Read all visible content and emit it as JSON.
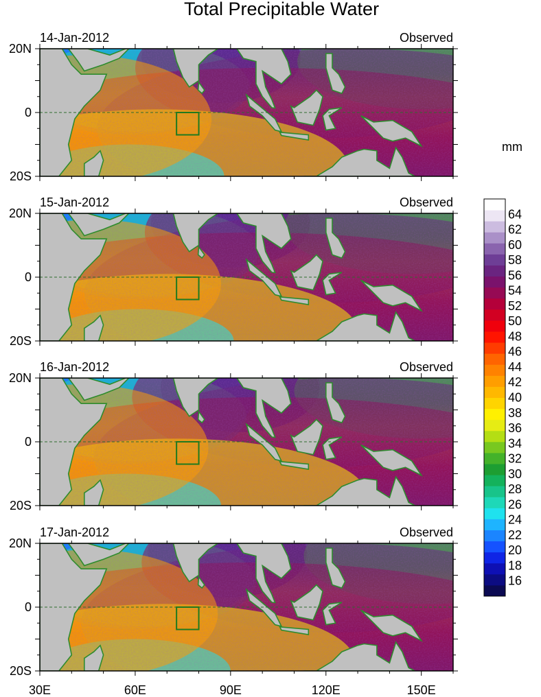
{
  "chart_data": {
    "type": "heatmap",
    "title": "Total Precipitable Water",
    "panels": [
      {
        "date": "14-Jan-2012",
        "label": "Observed"
      },
      {
        "date": "15-Jan-2012",
        "label": "Observed"
      },
      {
        "date": "16-Jan-2012",
        "label": "Observed"
      },
      {
        "date": "17-Jan-2012",
        "label": "Observed"
      }
    ],
    "x_ticks": [
      {
        "value": 30,
        "label": "30E"
      },
      {
        "value": 60,
        "label": "60E"
      },
      {
        "value": 90,
        "label": "90E"
      },
      {
        "value": 120,
        "label": "120E"
      },
      {
        "value": 150,
        "label": "150E"
      }
    ],
    "y_ticks": [
      {
        "value": 20,
        "label": "20N"
      },
      {
        "value": 0,
        "label": "0"
      },
      {
        "value": -20,
        "label": "20S"
      }
    ],
    "xlim": [
      30,
      160
    ],
    "ylim": [
      -20,
      20
    ],
    "colorbar": {
      "unit": "mm",
      "range": [
        14,
        66
      ],
      "tick_labels": [
        "16",
        "18",
        "20",
        "22",
        "24",
        "26",
        "28",
        "30",
        "32",
        "34",
        "36",
        "38",
        "40",
        "42",
        "44",
        "46",
        "48",
        "50",
        "52",
        "54",
        "56",
        "58",
        "60",
        "62",
        "64"
      ],
      "colors": [
        "#0b0a52",
        "#0c0c82",
        "#0e10b4",
        "#0f25e6",
        "#1552ff",
        "#1b85ff",
        "#1eb4ff",
        "#1fe2ee",
        "#1ed8b8",
        "#18c48a",
        "#14b25c",
        "#1d9e32",
        "#44b22a",
        "#78c820",
        "#b4de14",
        "#e6ec14",
        "#fff000",
        "#ffd400",
        "#ffb800",
        "#ff9e00",
        "#ff8200",
        "#ff6400",
        "#ff3c00",
        "#ff1400",
        "#f0000c",
        "#d20022",
        "#b4003a",
        "#960a54",
        "#7a126c",
        "#6a2480",
        "#6e3e96",
        "#8a64ae",
        "#aa90c8",
        "#ccbce0",
        "#ede6f4",
        "#ffffff"
      ]
    },
    "annotations": [
      "Equator dashed line",
      "Box at 73E-80E, 7S-0"
    ]
  }
}
